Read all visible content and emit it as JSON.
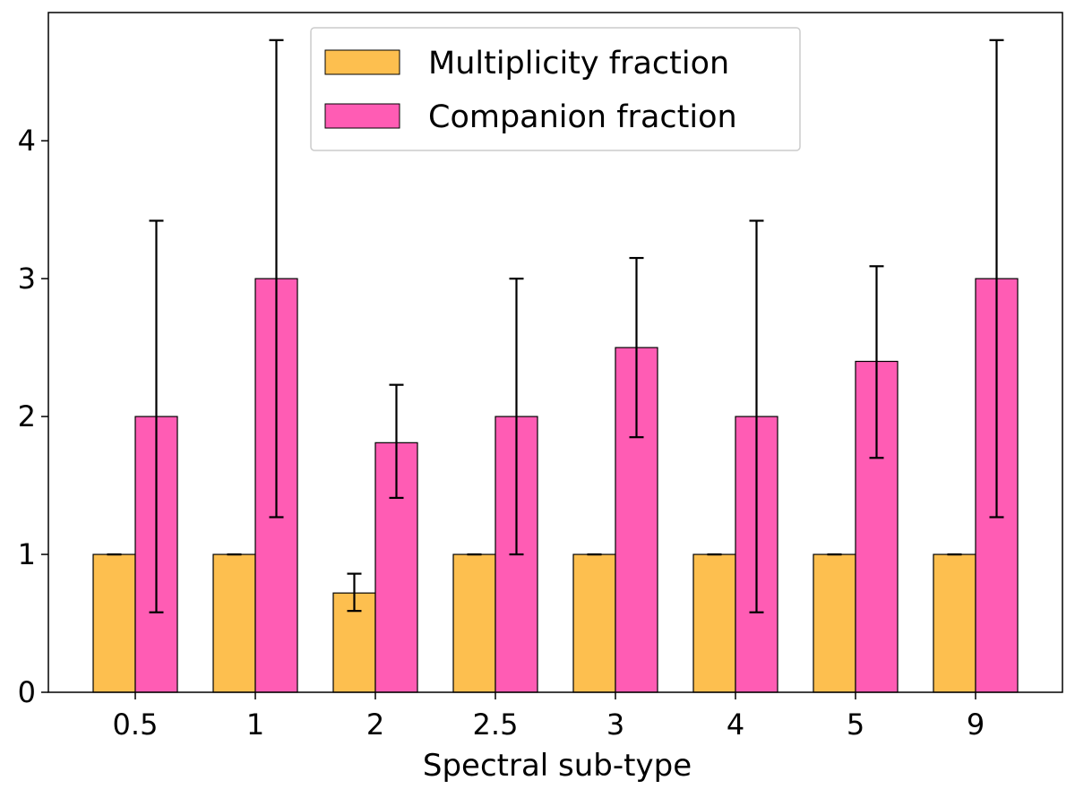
{
  "chart_data": {
    "type": "bar",
    "title": "",
    "xlabel": "Spectral sub-type",
    "ylabel": "",
    "categories": [
      "0.5",
      "1",
      "2",
      "2.5",
      "3",
      "4",
      "5",
      "9"
    ],
    "ylim": [
      0,
      4.93
    ],
    "yticks": [
      "0",
      "1",
      "2",
      "3",
      "4"
    ],
    "series": [
      {
        "name": "Multiplicity fraction",
        "color": "#FDBF4F",
        "values": [
          1,
          1,
          0.72,
          1,
          1,
          1,
          1,
          1
        ],
        "err_low": [
          1,
          1,
          0.59,
          1,
          1,
          1,
          1,
          1
        ],
        "err_high": [
          1,
          1,
          0.86,
          1,
          1,
          1,
          1,
          1
        ]
      },
      {
        "name": "Companion fraction",
        "color": "#FF5CB4",
        "values": [
          2,
          3,
          1.81,
          2,
          2.5,
          2,
          2.4,
          3
        ],
        "err_low": [
          0.58,
          1.27,
          1.41,
          1.0,
          1.85,
          0.58,
          1.7,
          1.27
        ],
        "err_high": [
          3.42,
          4.73,
          2.23,
          3.0,
          3.15,
          3.42,
          3.09,
          4.73
        ]
      }
    ],
    "legend": {
      "location": "top-center",
      "entries": [
        "Multiplicity fraction",
        "Companion fraction"
      ]
    }
  }
}
